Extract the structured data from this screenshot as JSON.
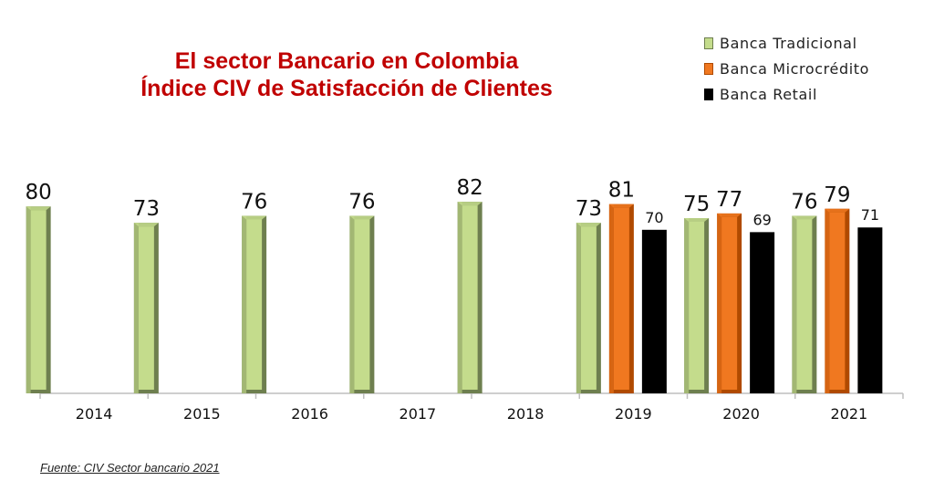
{
  "chart_data": {
    "type": "bar",
    "title_line1": "El sector Bancario en Colombia",
    "title_line2": "Índice CIV de Satisfacción de Clientes",
    "categories": [
      "2014",
      "2015",
      "2016",
      "2017",
      "2018",
      "2019",
      "2020",
      "2021"
    ],
    "series": [
      {
        "name": "Banca Tradicional",
        "color": "#c4dc8c",
        "edge": "#6e7f4f",
        "values": [
          80,
          73,
          76,
          76,
          82,
          73,
          75,
          76
        ]
      },
      {
        "name": "Banca Microcrédito",
        "color": "#f07820",
        "edge": "#b04a00",
        "values": [
          null,
          null,
          null,
          null,
          null,
          81,
          77,
          79
        ]
      },
      {
        "name": "Banca Retail",
        "color": "#000000",
        "edge": "#000000",
        "values": [
          null,
          null,
          null,
          null,
          null,
          70,
          69,
          71
        ]
      }
    ],
    "ylim": [
      0,
      90
    ],
    "grid": false,
    "legend_position": "top-right",
    "source": "Fuente: CIV Sector bancario 2021"
  }
}
